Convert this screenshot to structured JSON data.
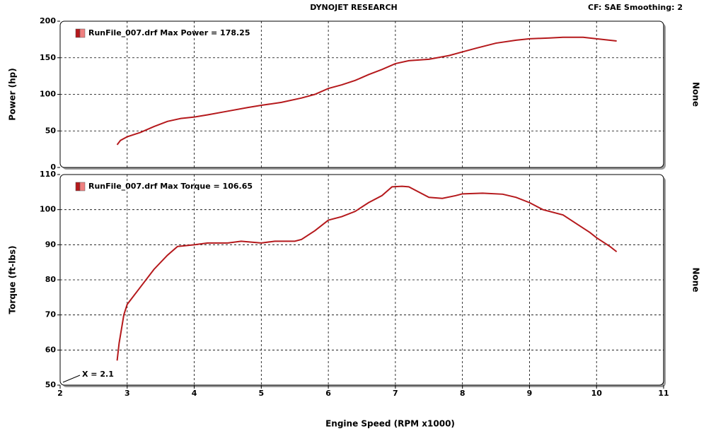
{
  "header": {
    "title": "DYNOJET RESEARCH",
    "settings": "CF: SAE  Smoothing: 2"
  },
  "chart_data": [
    {
      "type": "line",
      "ylabel": "Power (hp)",
      "right_label": "None",
      "xlim": [
        2,
        11
      ],
      "xticks": [
        2,
        3,
        4,
        5,
        6,
        7,
        8,
        9,
        10,
        11
      ],
      "ylim": [
        0,
        200
      ],
      "yticks": [
        0,
        50,
        100,
        150,
        200
      ],
      "grid": true,
      "x": [
        2.85,
        2.9,
        3.0,
        3.2,
        3.4,
        3.6,
        3.8,
        4.0,
        4.2,
        4.5,
        4.8,
        5.0,
        5.3,
        5.6,
        5.8,
        6.0,
        6.2,
        6.4,
        6.6,
        6.8,
        7.0,
        7.2,
        7.5,
        7.8,
        8.0,
        8.2,
        8.5,
        8.8,
        9.0,
        9.3,
        9.5,
        9.8,
        10.0,
        10.3
      ],
      "series": [
        {
          "name": "RunFile_007.drf Max Power = 178.25",
          "color": "#b5191c",
          "values": [
            31,
            37,
            42,
            48,
            56,
            63,
            67,
            69,
            72,
            77,
            82,
            85,
            89,
            95,
            100,
            108,
            113,
            119,
            127,
            134,
            142,
            146,
            148,
            153,
            158,
            163,
            170,
            174,
            176,
            177,
            178,
            178,
            176,
            173
          ]
        }
      ]
    },
    {
      "type": "line",
      "ylabel": "Torque (ft-lbs)",
      "right_label": "None",
      "xlabel": "Engine Speed (RPM x1000)",
      "annotation": "X = 2.1",
      "xlim": [
        2,
        11
      ],
      "xticks": [
        2,
        3,
        4,
        5,
        6,
        7,
        8,
        9,
        10,
        11
      ],
      "ylim": [
        50,
        110
      ],
      "yticks": [
        50,
        60,
        70,
        80,
        90,
        100,
        110
      ],
      "grid": true,
      "x": [
        2.85,
        2.88,
        2.95,
        3.0,
        3.2,
        3.4,
        3.6,
        3.75,
        4.0,
        4.2,
        4.5,
        4.7,
        5.0,
        5.2,
        5.5,
        5.6,
        5.8,
        6.0,
        6.2,
        6.4,
        6.6,
        6.8,
        6.95,
        7.1,
        7.2,
        7.5,
        7.7,
        7.9,
        8.0,
        8.3,
        8.6,
        8.8,
        9.0,
        9.2,
        9.5,
        9.7,
        9.9,
        10.0,
        10.2,
        10.3
      ],
      "series": [
        {
          "name": "RunFile_007.drf Max Torque = 106.65",
          "color": "#b5191c",
          "values": [
            57,
            62,
            70,
            73,
            78,
            83,
            87,
            89.5,
            90,
            90.5,
            90.5,
            91,
            90.5,
            91,
            91,
            91.5,
            94,
            97,
            98,
            99.5,
            102,
            104,
            106.5,
            106.65,
            106.5,
            103.5,
            103.2,
            104,
            104.5,
            104.7,
            104.4,
            103.5,
            102,
            100,
            98.5,
            96,
            93.5,
            92,
            89.5,
            88
          ]
        }
      ]
    }
  ]
}
